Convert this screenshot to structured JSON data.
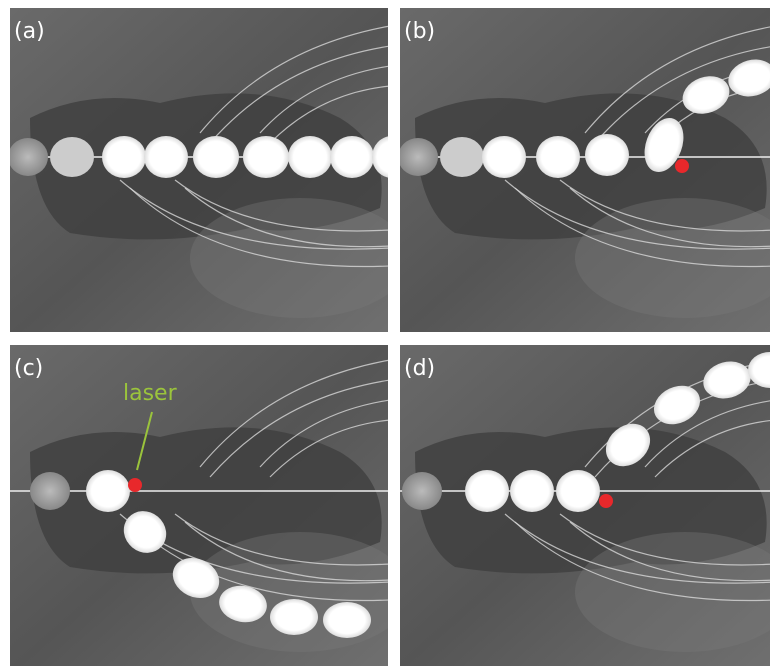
{
  "panels": [
    {
      "label": "(a)"
    },
    {
      "label": "(b)"
    },
    {
      "label": "(c)",
      "annotation": "laser"
    },
    {
      "label": "(d)"
    }
  ]
}
